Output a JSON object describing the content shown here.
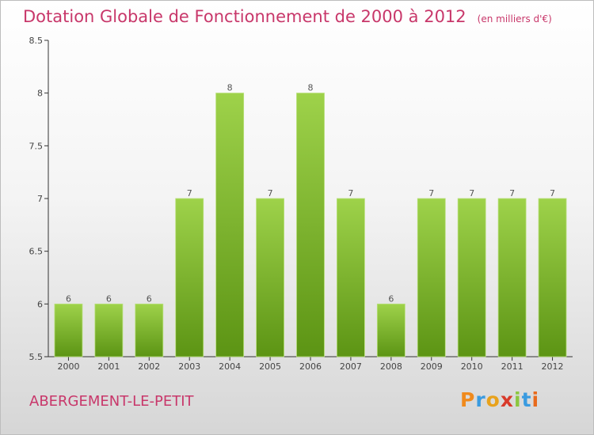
{
  "title": "Dotation Globale de Fonctionnement de 2000 à 2012",
  "subtitle": "(en milliers d'€)",
  "commune": "ABERGEMENT-LE-PETIT",
  "brand": {
    "letters": [
      "P",
      "r",
      "o",
      "x",
      "i",
      "t",
      "i"
    ],
    "colors": [
      "#f08a1c",
      "#3a9be0",
      "#e8a21c",
      "#d83a2a",
      "#8cc63f",
      "#3a9be0",
      "#e86a1c"
    ]
  },
  "colors": {
    "title": "#c8376a",
    "bar_light": "#9ed24a",
    "bar_dark": "#5c9414",
    "axis": "#333333"
  },
  "chart_data": {
    "type": "bar",
    "title": "Dotation Globale de Fonctionnement de 2000 à 2012",
    "subtitle": "(en milliers d'€)",
    "categories": [
      "2000",
      "2001",
      "2002",
      "2003",
      "2004",
      "2005",
      "2006",
      "2007",
      "2008",
      "2009",
      "2010",
      "2011",
      "2012"
    ],
    "values": [
      6,
      6,
      6,
      7,
      8,
      7,
      8,
      7,
      6,
      7,
      7,
      7,
      7
    ],
    "value_labels": [
      "6",
      "6",
      "6",
      "7",
      "8",
      "7",
      "8",
      "7",
      "6",
      "7",
      "7",
      "7",
      "7"
    ],
    "ylim": [
      5.5,
      8.5
    ],
    "yticks": [
      5.5,
      6,
      6.5,
      7,
      7.5,
      8,
      8.5
    ],
    "ytick_labels": [
      "5.5",
      "6",
      "6.5",
      "7",
      "7.5",
      "8",
      "8.5"
    ],
    "xlabel": "",
    "ylabel": "",
    "grid": false
  }
}
